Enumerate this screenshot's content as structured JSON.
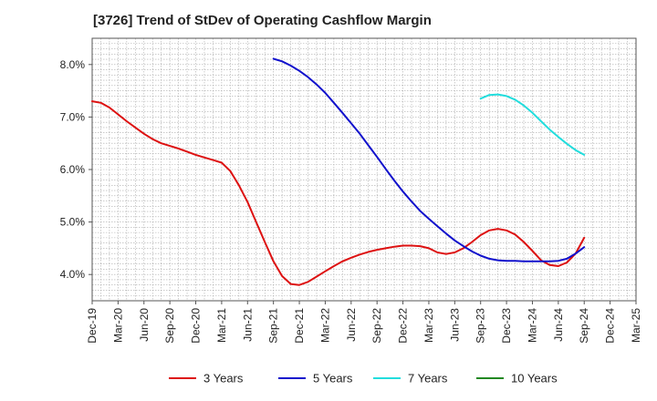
{
  "chart_data": {
    "type": "line",
    "title": "[3726]  Trend of StDev of Operating Cashflow Margin",
    "xlabel": "",
    "ylabel": "",
    "x_ticks": [
      "Dec-19",
      "Mar-20",
      "Jun-20",
      "Sep-20",
      "Dec-20",
      "Mar-21",
      "Jun-21",
      "Sep-21",
      "Dec-21",
      "Mar-22",
      "Jun-22",
      "Sep-22",
      "Dec-22",
      "Mar-23",
      "Jun-23",
      "Sep-23",
      "Dec-23",
      "Mar-24",
      "Jun-24",
      "Sep-24",
      "Dec-24",
      "Mar-25"
    ],
    "y_ticks": [
      4.0,
      5.0,
      6.0,
      7.0,
      8.0
    ],
    "y_tick_labels": [
      "4.0%",
      "5.0%",
      "6.0%",
      "7.0%",
      "8.0%"
    ],
    "ylim": [
      3.5,
      8.5
    ],
    "grid": true,
    "legend_position": "bottom",
    "series": [
      {
        "name": "3 Years",
        "color": "#dd1111",
        "x": [
          "Dec-19",
          "Jan-20",
          "Feb-20",
          "Mar-20",
          "Apr-20",
          "May-20",
          "Jun-20",
          "Jul-20",
          "Aug-20",
          "Sep-20",
          "Oct-20",
          "Nov-20",
          "Dec-20",
          "Jan-21",
          "Feb-21",
          "Mar-21",
          "Apr-21",
          "May-21",
          "Jun-21",
          "Jul-21",
          "Aug-21",
          "Sep-21",
          "Oct-21",
          "Nov-21",
          "Dec-21",
          "Jan-22",
          "Feb-22",
          "Mar-22",
          "Apr-22",
          "May-22",
          "Jun-22",
          "Jul-22",
          "Aug-22",
          "Sep-22",
          "Oct-22",
          "Nov-22",
          "Dec-22",
          "Jan-23",
          "Feb-23",
          "Mar-23",
          "Apr-23",
          "May-23",
          "Jun-23",
          "Jul-23",
          "Aug-23",
          "Sep-23",
          "Oct-23",
          "Nov-23",
          "Dec-23",
          "Jan-24",
          "Feb-24",
          "Mar-24",
          "Apr-24",
          "May-24",
          "Jun-24",
          "Jul-24",
          "Aug-24",
          "Sep-24"
        ],
        "values": [
          7.3,
          7.27,
          7.18,
          7.05,
          6.92,
          6.8,
          6.68,
          6.58,
          6.5,
          6.45,
          6.4,
          6.34,
          6.28,
          6.23,
          6.18,
          6.13,
          5.97,
          5.7,
          5.38,
          5.0,
          4.62,
          4.25,
          3.97,
          3.82,
          3.8,
          3.86,
          3.96,
          4.06,
          4.16,
          4.25,
          4.32,
          4.38,
          4.43,
          4.47,
          4.5,
          4.53,
          4.55,
          4.55,
          4.54,
          4.5,
          4.42,
          4.39,
          4.42,
          4.5,
          4.62,
          4.75,
          4.84,
          4.87,
          4.84,
          4.76,
          4.62,
          4.45,
          4.27,
          4.18,
          4.16,
          4.23,
          4.4,
          4.7
        ]
      },
      {
        "name": "5 Years",
        "color": "#1111cc",
        "x": [
          "Sep-21",
          "Oct-21",
          "Nov-21",
          "Dec-21",
          "Jan-22",
          "Feb-22",
          "Mar-22",
          "Apr-22",
          "May-22",
          "Jun-22",
          "Jul-22",
          "Aug-22",
          "Sep-22",
          "Oct-22",
          "Nov-22",
          "Dec-22",
          "Jan-23",
          "Feb-23",
          "Mar-23",
          "Apr-23",
          "May-23",
          "Jun-23",
          "Jul-23",
          "Aug-23",
          "Sep-23",
          "Oct-23",
          "Nov-23",
          "Dec-23",
          "Jan-24",
          "Feb-24",
          "Mar-24",
          "Apr-24",
          "May-24",
          "Jun-24",
          "Jul-24",
          "Aug-24",
          "Sep-24"
        ],
        "values": [
          8.11,
          8.06,
          7.98,
          7.88,
          7.76,
          7.62,
          7.46,
          7.27,
          7.08,
          6.88,
          6.68,
          6.46,
          6.24,
          6.01,
          5.79,
          5.58,
          5.39,
          5.21,
          5.06,
          4.92,
          4.78,
          4.65,
          4.54,
          4.44,
          4.36,
          4.3,
          4.27,
          4.26,
          4.26,
          4.25,
          4.25,
          4.25,
          4.25,
          4.26,
          4.3,
          4.4,
          4.52
        ]
      },
      {
        "name": "7 Years",
        "color": "#22dddd",
        "x": [
          "Sep-23",
          "Oct-23",
          "Nov-23",
          "Dec-23",
          "Jan-24",
          "Feb-24",
          "Mar-24",
          "Apr-24",
          "May-24",
          "Jun-24",
          "Jul-24",
          "Aug-24",
          "Sep-24"
        ],
        "values": [
          7.35,
          7.42,
          7.43,
          7.4,
          7.33,
          7.22,
          7.08,
          6.92,
          6.76,
          6.62,
          6.49,
          6.37,
          6.28
        ]
      },
      {
        "name": "10 Years",
        "color": "#228822",
        "x": [],
        "values": []
      }
    ]
  }
}
